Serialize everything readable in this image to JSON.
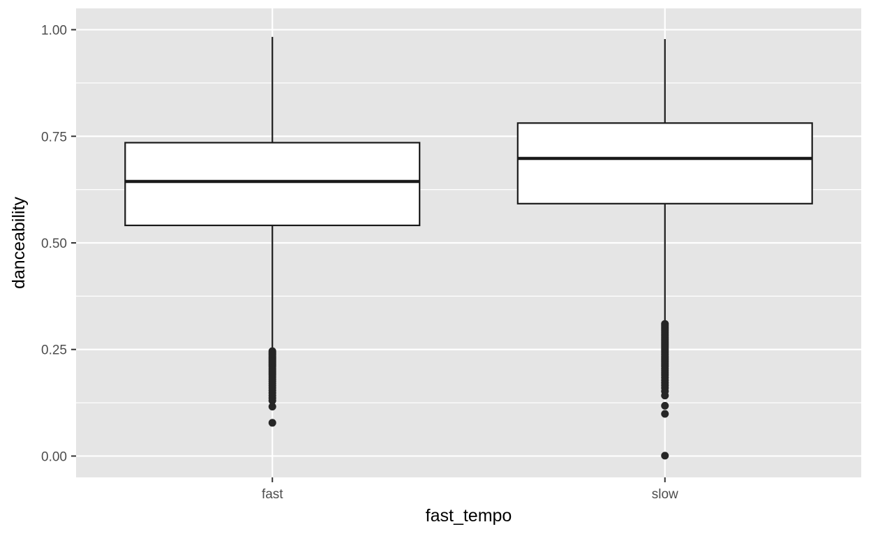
{
  "chart_data": {
    "type": "boxplot",
    "xlabel": "fast_tempo",
    "ylabel": "danceability",
    "categories": [
      "fast",
      "slow"
    ],
    "ylim": [
      -0.05,
      1.05
    ],
    "y_ticks": [
      0.0,
      0.25,
      0.5,
      0.75,
      1.0
    ],
    "y_tick_labels": [
      "0.00",
      "0.25",
      "0.50",
      "0.75",
      "1.00"
    ],
    "grid": true,
    "boxes": [
      {
        "category": "fast",
        "whisker_low": 0.248,
        "q1": 0.541,
        "median": 0.644,
        "q3": 0.735,
        "whisker_high": 0.983,
        "outliers": [
          0.246,
          0.243,
          0.24,
          0.237,
          0.234,
          0.231,
          0.228,
          0.225,
          0.222,
          0.219,
          0.216,
          0.213,
          0.21,
          0.206,
          0.202,
          0.198,
          0.194,
          0.19,
          0.185,
          0.18,
          0.175,
          0.17,
          0.165,
          0.16,
          0.154,
          0.148,
          0.142,
          0.136,
          0.13,
          0.116,
          0.078
        ]
      },
      {
        "category": "slow",
        "whisker_low": 0.312,
        "q1": 0.592,
        "median": 0.698,
        "q3": 0.781,
        "whisker_high": 0.978,
        "outliers": [
          0.31,
          0.306,
          0.302,
          0.298,
          0.294,
          0.29,
          0.286,
          0.282,
          0.278,
          0.274,
          0.27,
          0.266,
          0.262,
          0.258,
          0.254,
          0.25,
          0.246,
          0.242,
          0.238,
          0.234,
          0.23,
          0.226,
          0.222,
          0.218,
          0.214,
          0.21,
          0.205,
          0.2,
          0.195,
          0.19,
          0.184,
          0.178,
          0.172,
          0.166,
          0.16,
          0.152,
          0.142,
          0.118,
          0.099,
          0.001
        ]
      }
    ],
    "colors": {
      "panel_background": "#e5e5e5",
      "grid_line": "#ffffff",
      "box_fill": "#ffffff",
      "box_stroke": "#1a1a1a",
      "outlier": "#262626"
    }
  }
}
